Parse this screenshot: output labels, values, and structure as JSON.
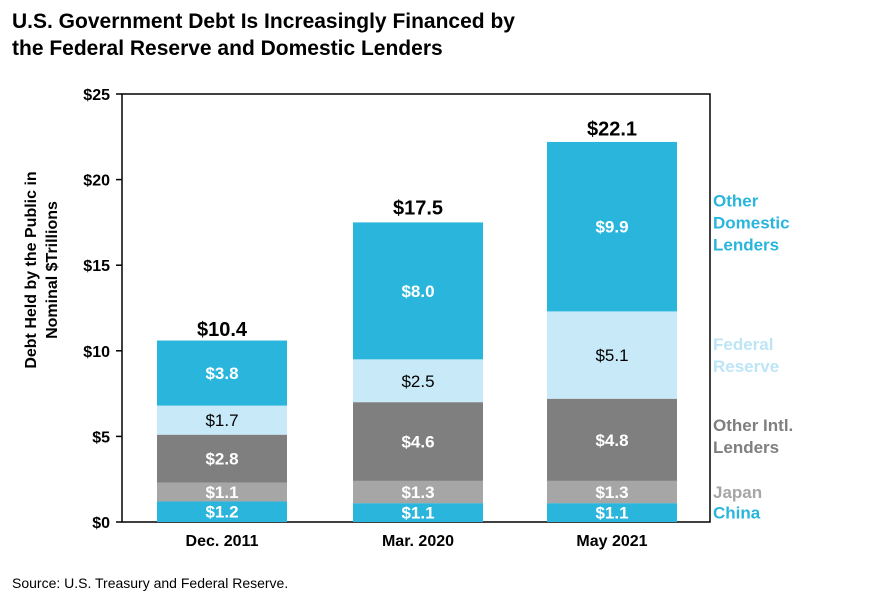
{
  "title_lines": [
    "U.S. Government Debt Is Increasingly Financed by",
    "the Federal Reserve and Domestic Lenders"
  ],
  "source": "Source: U.S. Treasury and Federal Reserve.",
  "colors": {
    "china": "#29b5dc",
    "japan": "#a6a6a6",
    "other_intl": "#7f7f7f",
    "federal_reserve": "#c8eaf8",
    "other_domestic": "#29b5dc",
    "legend_federal_reserve_text": "#bde5f6"
  },
  "chart_data": {
    "type": "bar",
    "stacked": true,
    "categories": [
      "Dec. 2011",
      "Mar. 2020",
      "May 2021"
    ],
    "ylabel": "Debt Held by the Public in Nominal $Trillions",
    "ylim": [
      0,
      25
    ],
    "yticks": [
      0,
      5,
      10,
      15,
      20,
      25
    ],
    "ytick_labels": [
      "$0",
      "$5",
      "$10",
      "$15",
      "$20",
      "$25"
    ],
    "legend_position": "right",
    "series": [
      {
        "name": "China",
        "key": "china",
        "values": [
          1.2,
          1.1,
          1.1
        ],
        "labels": [
          "$1.2",
          "$1.1",
          "$1.1"
        ]
      },
      {
        "name": "Japan",
        "key": "japan",
        "values": [
          1.1,
          1.3,
          1.3
        ],
        "labels": [
          "$1.1",
          "$1.3",
          "$1.3"
        ]
      },
      {
        "name": "Other Intl. Lenders",
        "key": "other_intl",
        "values": [
          2.8,
          4.6,
          4.8
        ],
        "labels": [
          "$2.8",
          "$4.6",
          "$4.8"
        ]
      },
      {
        "name": "Federal Reserve",
        "key": "federal_reserve",
        "values": [
          1.7,
          2.5,
          5.1
        ],
        "labels": [
          "$1.7",
          "$2.5",
          "$5.1"
        ]
      },
      {
        "name": "Other Domestic Lenders",
        "key": "other_domestic",
        "values": [
          3.8,
          8.0,
          9.9
        ],
        "labels": [
          "$3.8",
          "$8.0",
          "$9.9"
        ]
      }
    ],
    "totals": [
      10.4,
      17.5,
      22.1
    ],
    "total_labels": [
      "$10.4",
      "$17.5",
      "$22.1"
    ],
    "legend": [
      {
        "key": "other_domestic",
        "lines": [
          "Other",
          "Domestic",
          "Lenders"
        ]
      },
      {
        "key": "federal_reserve",
        "lines": [
          "Federal",
          "Reserve"
        ]
      },
      {
        "key": "other_intl",
        "lines": [
          "Other Intl.",
          "Lenders"
        ]
      },
      {
        "key": "japan",
        "lines": [
          "Japan"
        ]
      },
      {
        "key": "china",
        "lines": [
          "China"
        ]
      }
    ]
  }
}
